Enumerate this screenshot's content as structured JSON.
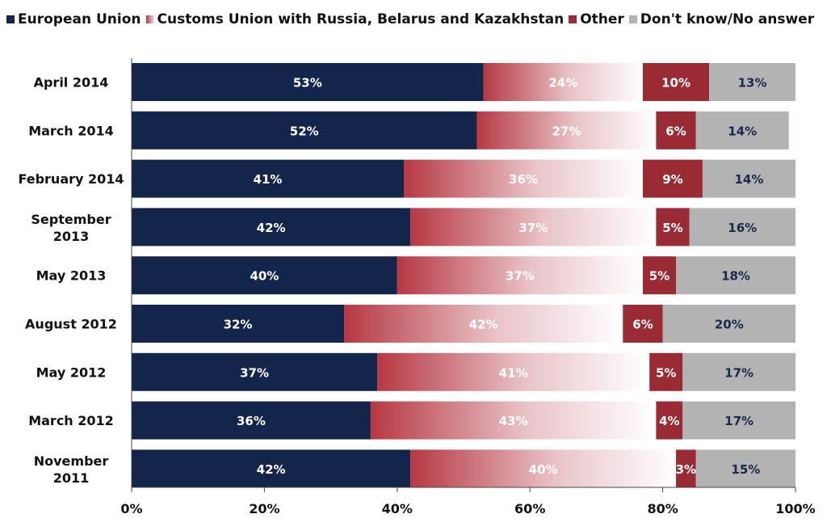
{
  "chart_data": {
    "type": "bar",
    "orientation": "horizontal",
    "stacked": true,
    "categories": [
      "April 2014",
      "March 2014",
      "February 2014",
      "September 2013",
      "May 2013",
      "August 2012",
      "May 2012",
      "March 2012",
      "November 2011"
    ],
    "category_lines": [
      [
        "April 2014"
      ],
      [
        "March 2014"
      ],
      [
        "February 2014"
      ],
      [
        "September",
        "2013"
      ],
      [
        "May 2013"
      ],
      [
        "August 2012"
      ],
      [
        "May 2012"
      ],
      [
        "March 2012"
      ],
      [
        "November",
        "2011"
      ]
    ],
    "series": [
      {
        "name": "European Union",
        "color": "#13254a",
        "label_color": "#ffffff",
        "values": [
          53,
          52,
          41,
          42,
          40,
          32,
          37,
          36,
          42
        ],
        "labels": [
          "53%",
          "52%",
          "41%",
          "42%",
          "40%",
          "32%",
          "37%",
          "36%",
          "42%"
        ]
      },
      {
        "name": "Customs Union with Russia, Belarus and Kazakhstan",
        "color": "#b83a45",
        "gradient": true,
        "label_color": "#ffffff",
        "values": [
          24,
          27,
          36,
          37,
          37,
          42,
          41,
          43,
          40
        ],
        "labels": [
          "24%",
          "27%",
          "36%",
          "37%",
          "37%",
          "42%",
          "41%",
          "43%",
          "40%"
        ]
      },
      {
        "name": "Other",
        "color": "#9a2a34",
        "label_color": "#ffffff",
        "values": [
          10,
          6,
          9,
          5,
          5,
          6,
          5,
          4,
          3
        ],
        "labels": [
          "10%",
          "6%",
          "9%",
          "5%",
          "5%",
          "6%",
          "5%",
          "4%",
          "3%"
        ]
      },
      {
        "name": "Don't know/No answer",
        "color": "#b3b3b3",
        "label_color": "#1a2a4a",
        "values": [
          13,
          14,
          14,
          16,
          18,
          20,
          17,
          17,
          15
        ],
        "labels": [
          "13%",
          "14%",
          "14%",
          "16%",
          "18%",
          "20%",
          "17%",
          "17%",
          "15%"
        ]
      }
    ],
    "xlim": [
      0,
      100
    ],
    "xticks": [
      0,
      20,
      40,
      60,
      80,
      100
    ],
    "xtick_labels": [
      "0%",
      "20%",
      "40%",
      "60%",
      "80%",
      "100%"
    ],
    "legend_position": "top",
    "grid": false
  }
}
